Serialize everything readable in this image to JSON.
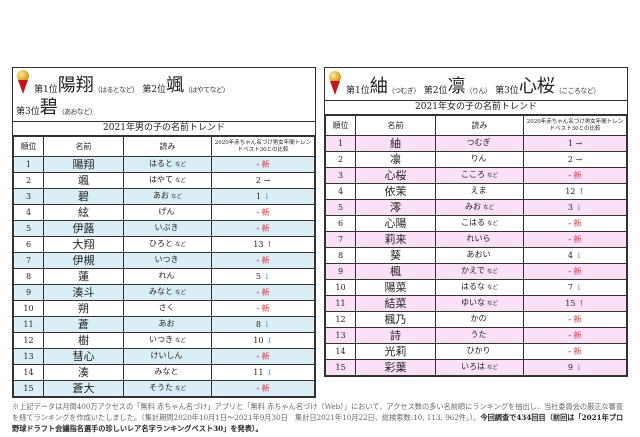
{
  "footnote": {
    "text": "※上記データは月間400万アクセスの「無料 赤ちゃん名づけ」アプリと「無料 赤ちゃん名づけ（Web）」において、アクセス数の多い名前順にランキングを抽出し、当社委員会の厳正な審査を経てランキングを作成いたしました。（集計期間2020年10月1日～2021年9月30日　集計日2021年10月22日、総検索数:10, 113, 962件。）。",
    "bold": "今回調査で434回目（前回は「2021年プロ野球ドラフト会議指名選手の珍しいレア名字ランキングベスト30」を発表）。"
  },
  "colors": {
    "boys_row": "#dbeef5",
    "girls_row": "#fbe0f6",
    "up": "#e0303a",
    "down": "#2a8fd0"
  },
  "boys": {
    "top3": [
      {
        "label": "第1位",
        "name": "陽翔",
        "kana": "（はるとなど）"
      },
      {
        "label": "第2位",
        "name": "颯",
        "kana": "（はやてなど）"
      },
      {
        "label": "第3位",
        "name": "碧",
        "kana": "（あおなど）"
      }
    ],
    "subtitle": "2021年男の子の名前トレンド",
    "headers": [
      "順位",
      "名前",
      "読み",
      "2020年赤ちゃん名づけ男女年間トレンドベスト30との比較"
    ],
    "rows": [
      {
        "rank": "1",
        "name": "陽翔",
        "yomi": "はると",
        "nado": "など",
        "prev": "-",
        "mark": "新"
      },
      {
        "rank": "2",
        "name": "颯",
        "yomi": "はやて",
        "nado": "など",
        "prev": "2",
        "mark": "→"
      },
      {
        "rank": "3",
        "name": "碧",
        "yomi": "あお",
        "nado": "など",
        "prev": "1",
        "mark": "↓"
      },
      {
        "rank": "4",
        "name": "絃",
        "yomi": "げん",
        "nado": "",
        "prev": "-",
        "mark": "新"
      },
      {
        "rank": "5",
        "name": "伊蕗",
        "yomi": "いぶき",
        "nado": "",
        "prev": "-",
        "mark": "新"
      },
      {
        "rank": "6",
        "name": "大翔",
        "yomi": "ひろと",
        "nado": "など",
        "prev": "13",
        "mark": "↑"
      },
      {
        "rank": "7",
        "name": "伊槻",
        "yomi": "いつき",
        "nado": "",
        "prev": "-",
        "mark": "新"
      },
      {
        "rank": "8",
        "name": "蓮",
        "yomi": "れん",
        "nado": "",
        "prev": "5",
        "mark": "↓"
      },
      {
        "rank": "9",
        "name": "湊斗",
        "yomi": "みなと",
        "nado": "など",
        "prev": "-",
        "mark": "新"
      },
      {
        "rank": "10",
        "name": "朔",
        "yomi": "さく",
        "nado": "",
        "prev": "-",
        "mark": "新"
      },
      {
        "rank": "11",
        "name": "蒼",
        "yomi": "あお",
        "nado": "",
        "prev": "8",
        "mark": "↓"
      },
      {
        "rank": "12",
        "name": "樹",
        "yomi": "いつき",
        "nado": "など",
        "prev": "10",
        "mark": "↓"
      },
      {
        "rank": "13",
        "name": "彗心",
        "yomi": "けいしん",
        "nado": "",
        "prev": "-",
        "mark": "新"
      },
      {
        "rank": "14",
        "name": "湊",
        "yomi": "みなと",
        "nado": "",
        "prev": "11",
        "mark": "↓"
      },
      {
        "rank": "15",
        "name": "蒼大",
        "yomi": "そうた",
        "nado": "など",
        "prev": "-",
        "mark": "新"
      }
    ]
  },
  "girls": {
    "top3": [
      {
        "label": "第1位",
        "name": "紬",
        "kana": "（つむぎ）"
      },
      {
        "label": "第2位",
        "name": "凛",
        "kana": "（りん）"
      },
      {
        "label": "第3位",
        "name": "心桜",
        "kana": "（こころなど）"
      }
    ],
    "subtitle": "2021年女の子の名前トレンド",
    "headers": [
      "順位",
      "名前",
      "読み",
      "2020年赤ちゃん名づけ男女年間トレンドベスト30との比較"
    ],
    "rows": [
      {
        "rank": "1",
        "name": "紬",
        "yomi": "つむぎ",
        "nado": "",
        "prev": "1",
        "mark": "→"
      },
      {
        "rank": "2",
        "name": "凛",
        "yomi": "りん",
        "nado": "",
        "prev": "2",
        "mark": "→"
      },
      {
        "rank": "3",
        "name": "心桜",
        "yomi": "こころ",
        "nado": "など",
        "prev": "-",
        "mark": "新"
      },
      {
        "rank": "4",
        "name": "依茉",
        "yomi": "えま",
        "nado": "",
        "prev": "12",
        "mark": "↑"
      },
      {
        "rank": "5",
        "name": "澪",
        "yomi": "みお",
        "nado": "など",
        "prev": "3",
        "mark": "↓"
      },
      {
        "rank": "6",
        "name": "心陽",
        "yomi": "こはる",
        "nado": "など",
        "prev": "-",
        "mark": "新"
      },
      {
        "rank": "7",
        "name": "莉来",
        "yomi": "れいら",
        "nado": "",
        "prev": "-",
        "mark": "新"
      },
      {
        "rank": "8",
        "name": "葵",
        "yomi": "あおい",
        "nado": "",
        "prev": "4",
        "mark": "↓"
      },
      {
        "rank": "9",
        "name": "楓",
        "yomi": "かえで",
        "nado": "など",
        "prev": "-",
        "mark": "新"
      },
      {
        "rank": "10",
        "name": "陽菜",
        "yomi": "はるな",
        "nado": "など",
        "prev": "7",
        "mark": "↓"
      },
      {
        "rank": "11",
        "name": "結菜",
        "yomi": "ゆいな",
        "nado": "など",
        "prev": "15",
        "mark": "↑"
      },
      {
        "rank": "12",
        "name": "楓乃",
        "yomi": "かの",
        "nado": "",
        "prev": "-",
        "mark": "新"
      },
      {
        "rank": "13",
        "name": "詩",
        "yomi": "うた",
        "nado": "",
        "prev": "-",
        "mark": "新"
      },
      {
        "rank": "14",
        "name": "光莉",
        "yomi": "ひかり",
        "nado": "",
        "prev": "-",
        "mark": "新"
      },
      {
        "rank": "15",
        "name": "彩葉",
        "yomi": "いろは",
        "nado": "など",
        "prev": "9",
        "mark": "↓"
      }
    ]
  }
}
